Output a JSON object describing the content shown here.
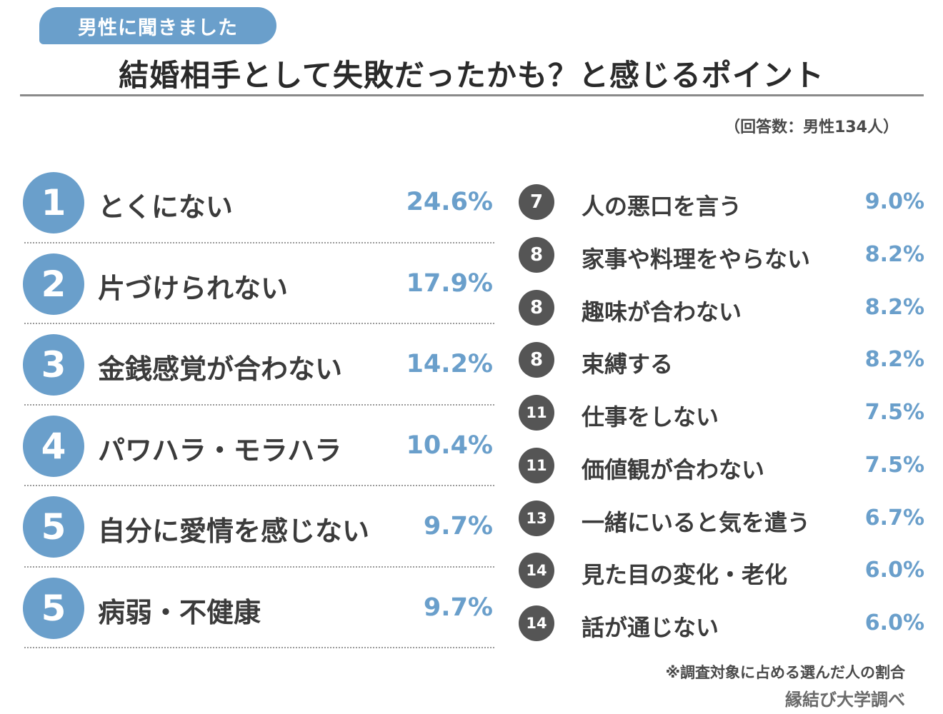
{
  "header": {
    "tag": "男性に聞きました",
    "title": "結婚相手として失敗だったかも？と感じるポイント",
    "respondents": "（回答数：男性134人）"
  },
  "colors": {
    "accent": "#6a9fcb",
    "rank_circle_small": "#555555",
    "text": "#3b3b3b"
  },
  "chart_data": {
    "type": "table",
    "unit": "%",
    "rows": [
      {
        "rank": "1",
        "label": "とくにない",
        "value": 24.6,
        "display": "24.6%"
      },
      {
        "rank": "2",
        "label": "片づけられない",
        "value": 17.9,
        "display": "17.9%"
      },
      {
        "rank": "3",
        "label": "金銭感覚が合わない",
        "value": 14.2,
        "display": "14.2%"
      },
      {
        "rank": "4",
        "label": "パワハラ・モラハラ",
        "value": 10.4,
        "display": "10.4%"
      },
      {
        "rank": "5",
        "label": "自分に愛情を感じない",
        "value": 9.7,
        "display": "9.7%"
      },
      {
        "rank": "5",
        "label": "病弱・不健康",
        "value": 9.7,
        "display": "9.7%"
      },
      {
        "rank": "7",
        "label": "人の悪口を言う",
        "value": 9.0,
        "display": "9.0%"
      },
      {
        "rank": "8",
        "label": "家事や料理をやらない",
        "value": 8.2,
        "display": "8.2%"
      },
      {
        "rank": "8",
        "label": "趣味が合わない",
        "value": 8.2,
        "display": "8.2%"
      },
      {
        "rank": "8",
        "label": "束縛する",
        "value": 8.2,
        "display": "8.2%"
      },
      {
        "rank": "11",
        "label": "仕事をしない",
        "value": 7.5,
        "display": "7.5%"
      },
      {
        "rank": "11",
        "label": "価値観が合わない",
        "value": 7.5,
        "display": "7.5%"
      },
      {
        "rank": "13",
        "label": "一緒にいると気を遣う",
        "value": 6.7,
        "display": "6.7%"
      },
      {
        "rank": "14",
        "label": "見た目の変化・老化",
        "value": 6.0,
        "display": "6.0%"
      },
      {
        "rank": "14",
        "label": "話が通じない",
        "value": 6.0,
        "display": "6.0%"
      }
    ]
  },
  "footer": {
    "note": "※調査対象に占める選んだ人の割合",
    "source": "縁結び大学調べ"
  }
}
